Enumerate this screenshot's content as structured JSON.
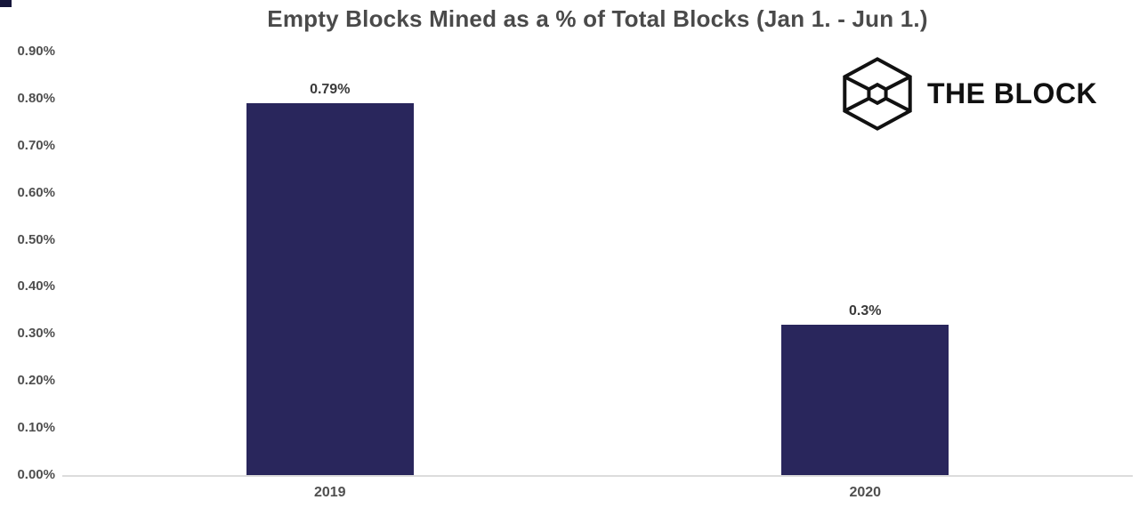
{
  "logo": {
    "text": "THE BLOCK",
    "icon": "block-cube-icon",
    "color": "#111111"
  },
  "chart_data": {
    "type": "bar",
    "title": "Empty Blocks Mined as a % of Total Blocks (Jan 1. - Jun 1.)",
    "categories": [
      "2019",
      "2020"
    ],
    "values": [
      0.79,
      0.32
    ],
    "value_labels": [
      "0.79%",
      "0.3%"
    ],
    "xlabel": "",
    "ylabel": "",
    "ylim": [
      0,
      0.9
    ],
    "yticks": [
      "0.00%",
      "0.10%",
      "0.20%",
      "0.30%",
      "0.40%",
      "0.50%",
      "0.60%",
      "0.70%",
      "0.80%",
      "0.90%"
    ],
    "grid": false,
    "legend": null,
    "bar_color": "#29265c"
  },
  "colors": {
    "title": "#4a4a4a",
    "axis_labels": "#4f4f4f",
    "value_labels": "#3a3a3a",
    "axis_line": "#dcdcdc",
    "bar": "#29265c",
    "corner_mark": "#16163a",
    "logo": "#111111"
  }
}
